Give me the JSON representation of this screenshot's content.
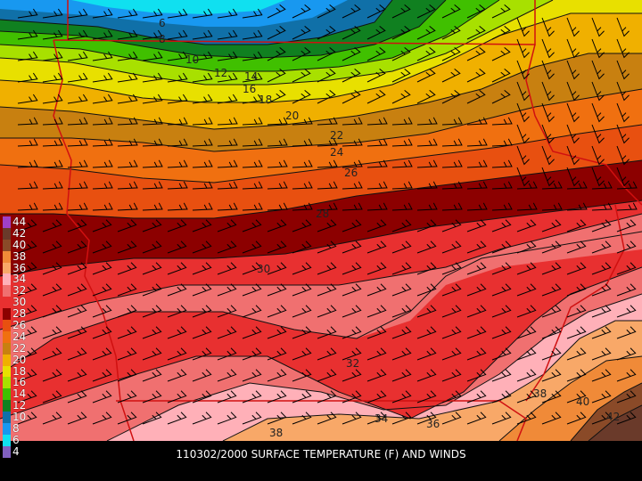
{
  "caption": "110302/2000 SURFACE TEMPERATURE (F) AND WINDS",
  "legend": [
    {
      "label": "44",
      "color": "#a040c8"
    },
    {
      "label": "42",
      "color": "#6a3a2a"
    },
    {
      "label": "40",
      "color": "#8a4a28"
    },
    {
      "label": "38",
      "color": "#f08a38"
    },
    {
      "label": "36",
      "color": "#f8a868"
    },
    {
      "label": "34",
      "color": "#ffb0b8"
    },
    {
      "label": "32",
      "color": "#f07070"
    },
    {
      "label": "30",
      "color": "#e83030"
    },
    {
      "label": "28",
      "color": "#8c0000"
    },
    {
      "label": "26",
      "color": "#e85010"
    },
    {
      "label": "24",
      "color": "#f07010"
    },
    {
      "label": "22",
      "color": "#c88010"
    },
    {
      "label": "20",
      "color": "#f0b000"
    },
    {
      "label": "18",
      "color": "#e8e000"
    },
    {
      "label": "16",
      "color": "#a8e000"
    },
    {
      "label": "14",
      "color": "#40c000"
    },
    {
      "label": "12",
      "color": "#108020"
    },
    {
      "label": "10",
      "color": "#1070a8"
    },
    {
      "label": "8",
      "color": "#1898f0"
    },
    {
      "label": "6",
      "color": "#10e0f0"
    },
    {
      "label": "4",
      "color": "#8060c0"
    }
  ],
  "contour_labels": [
    {
      "text": "6"
    },
    {
      "text": "8"
    },
    {
      "text": "10"
    },
    {
      "text": "12"
    },
    {
      "text": "14"
    },
    {
      "text": "16"
    },
    {
      "text": "18"
    },
    {
      "text": "20"
    },
    {
      "text": "22"
    },
    {
      "text": "24"
    },
    {
      "text": "26"
    },
    {
      "text": "28"
    },
    {
      "text": "30"
    },
    {
      "text": "32"
    },
    {
      "text": "34"
    },
    {
      "text": "36"
    },
    {
      "text": "38"
    },
    {
      "text": "38"
    },
    {
      "text": "40"
    },
    {
      "text": "42"
    }
  ]
}
